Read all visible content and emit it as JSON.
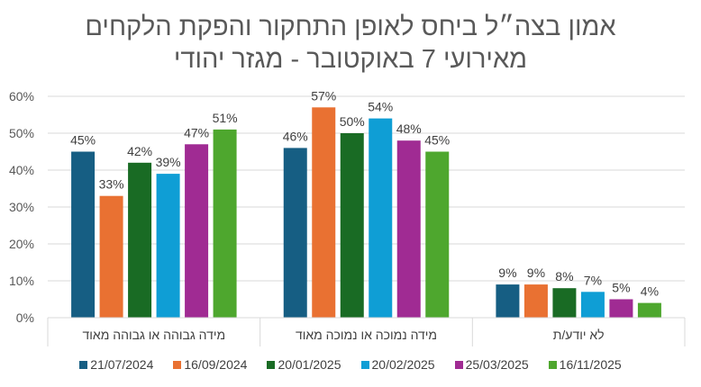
{
  "chart_data": {
    "type": "bar",
    "title_lines": [
      "אמון בצה״ל ביחס לאופן התחקור והפקת הלקחים",
      "מאירועי 7 באוקטובר - מגזר יהודי"
    ],
    "categories": [
      "מידה גבוהה או גבוהה מאוד",
      "מידה נמוכה או נמוכה מאוד",
      "לא יודע/ת"
    ],
    "series": [
      {
        "name": "21/07/2024",
        "color": "#165E83",
        "values": [
          45,
          46,
          9
        ]
      },
      {
        "name": "16/09/2024",
        "color": "#E97132",
        "values": [
          33,
          57,
          9
        ]
      },
      {
        "name": "20/01/2025",
        "color": "#196B24",
        "values": [
          42,
          50,
          8
        ]
      },
      {
        "name": "20/02/2025",
        "color": "#0F9ED5",
        "values": [
          39,
          54,
          7
        ]
      },
      {
        "name": "25/03/2025",
        "color": "#A02B93",
        "values": [
          47,
          48,
          5
        ]
      },
      {
        "name": "16/11/2025",
        "color": "#4EA72E",
        "values": [
          51,
          45,
          4
        ]
      }
    ],
    "yticks": [
      "0%",
      "10%",
      "20%",
      "30%",
      "40%",
      "50%",
      "60%"
    ],
    "ylim": [
      0,
      60
    ],
    "grid": true,
    "legend_position": "bottom",
    "value_suffix": "%"
  }
}
